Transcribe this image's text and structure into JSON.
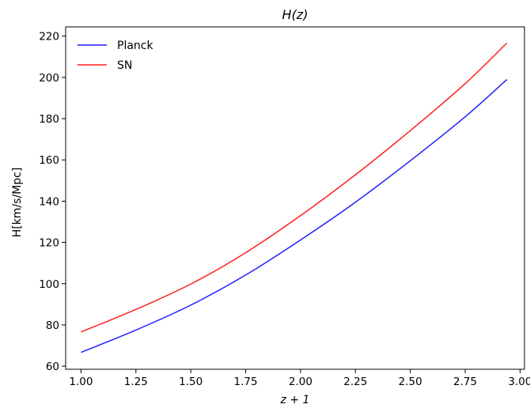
{
  "chart_data": {
    "type": "line",
    "title": "H(z)",
    "xlabel": "z + 1",
    "ylabel": "H[km/s/Mpc]",
    "xlim": [
      0.93,
      3.02
    ],
    "ylim": [
      58.5,
      224.5
    ],
    "xticks": [
      1.0,
      1.25,
      1.5,
      1.75,
      2.0,
      2.25,
      2.5,
      2.75,
      3.0
    ],
    "xtick_labels": [
      "1.00",
      "1.25",
      "1.50",
      "1.75",
      "2.00",
      "2.25",
      "2.50",
      "2.75",
      "3.00"
    ],
    "yticks": [
      60,
      80,
      100,
      120,
      140,
      160,
      180,
      200,
      220
    ],
    "ytick_labels": [
      "60",
      "80",
      "100",
      "120",
      "140",
      "160",
      "180",
      "200",
      "220"
    ],
    "grid": false,
    "legend_position": "top-left",
    "x": [
      1.0,
      1.25,
      1.5,
      1.75,
      2.0,
      2.25,
      2.5,
      2.75,
      2.94
    ],
    "series": [
      {
        "name": "Planck",
        "color": "#1f1fff",
        "values": [
          66.7,
          77.5,
          89.6,
          104.2,
          121.2,
          139.5,
          159.6,
          180.9,
          199.0
        ]
      },
      {
        "name": "SN",
        "color": "#ff1f1f",
        "values": [
          76.6,
          87.5,
          99.8,
          115.0,
          133.0,
          152.8,
          174.2,
          197.0,
          216.7
        ]
      }
    ]
  }
}
